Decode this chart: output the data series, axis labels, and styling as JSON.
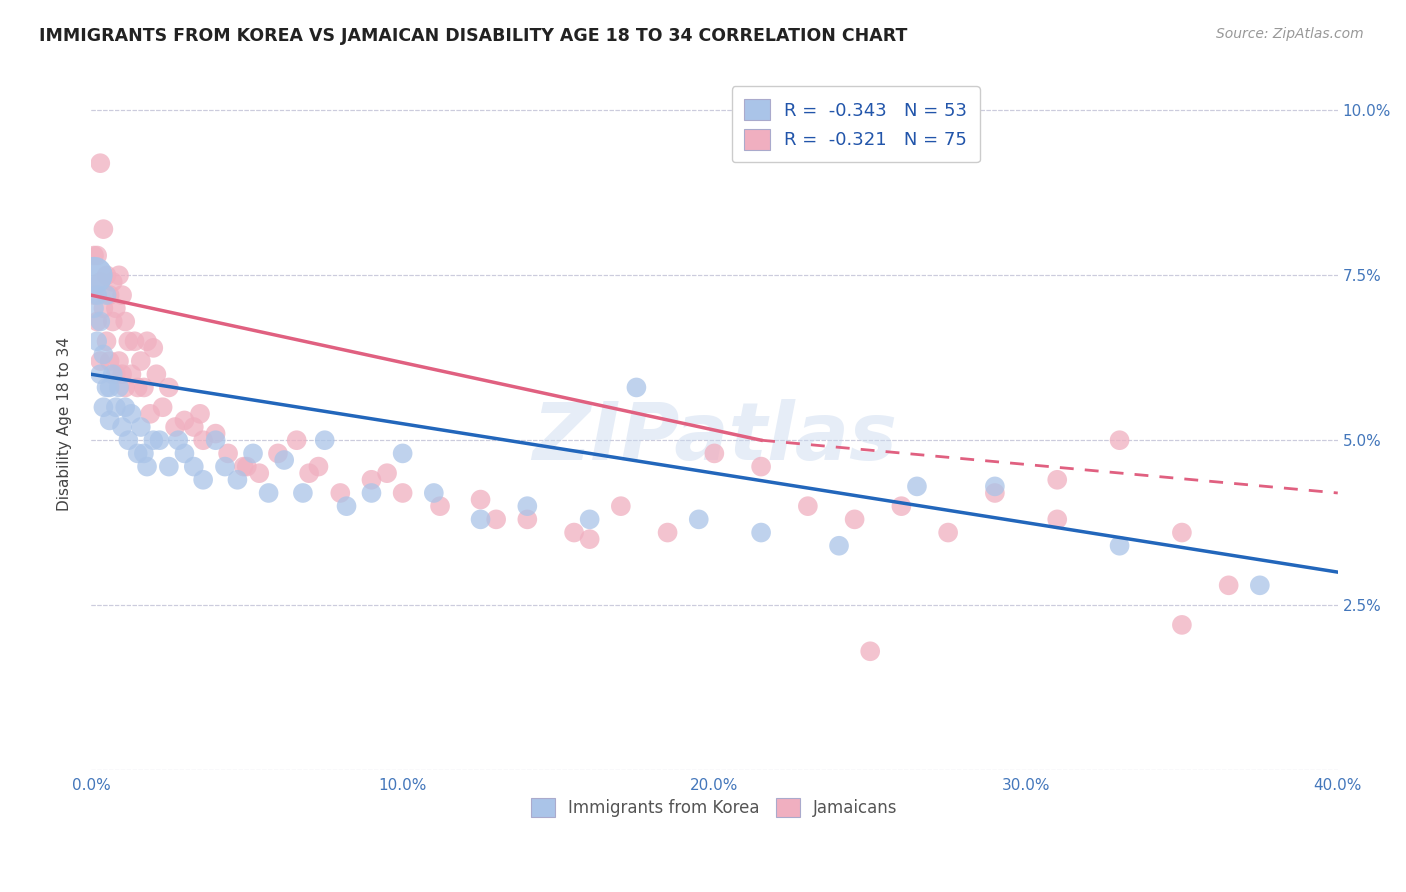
{
  "title": "IMMIGRANTS FROM KOREA VS JAMAICAN DISABILITY AGE 18 TO 34 CORRELATION CHART",
  "source": "Source: ZipAtlas.com",
  "ylabel": "Disability Age 18 to 34",
  "xlim": [
    0.0,
    0.4
  ],
  "ylim": [
    0.0,
    0.105
  ],
  "korea_color": "#aac4e8",
  "korea_edge_color": "#aac4e8",
  "jamaica_color": "#f0afc0",
  "jamaica_edge_color": "#f0afc0",
  "korea_line_color": "#2266bb",
  "jamaica_line_color": "#e06080",
  "korea_R": -0.343,
  "korea_N": 53,
  "jamaica_R": -0.321,
  "jamaica_N": 75,
  "background_color": "#ffffff",
  "grid_color": "#ccccdd",
  "watermark": "ZIPatlas",
  "korea_x": [
    0.001,
    0.001,
    0.002,
    0.002,
    0.003,
    0.003,
    0.004,
    0.004,
    0.005,
    0.005,
    0.006,
    0.006,
    0.007,
    0.008,
    0.009,
    0.01,
    0.011,
    0.012,
    0.013,
    0.015,
    0.016,
    0.017,
    0.018,
    0.02,
    0.022,
    0.025,
    0.028,
    0.03,
    0.033,
    0.036,
    0.04,
    0.043,
    0.047,
    0.052,
    0.057,
    0.062,
    0.068,
    0.075,
    0.082,
    0.09,
    0.1,
    0.11,
    0.125,
    0.14,
    0.16,
    0.175,
    0.195,
    0.215,
    0.24,
    0.265,
    0.29,
    0.33,
    0.375
  ],
  "korea_y": [
    0.075,
    0.07,
    0.072,
    0.065,
    0.068,
    0.06,
    0.063,
    0.055,
    0.058,
    0.072,
    0.058,
    0.053,
    0.06,
    0.055,
    0.058,
    0.052,
    0.055,
    0.05,
    0.054,
    0.048,
    0.052,
    0.048,
    0.046,
    0.05,
    0.05,
    0.046,
    0.05,
    0.048,
    0.046,
    0.044,
    0.05,
    0.046,
    0.044,
    0.048,
    0.042,
    0.047,
    0.042,
    0.05,
    0.04,
    0.042,
    0.048,
    0.042,
    0.038,
    0.04,
    0.038,
    0.058,
    0.038,
    0.036,
    0.034,
    0.043,
    0.043,
    0.034,
    0.028
  ],
  "korea_sizes": [
    700,
    200,
    200,
    200,
    200,
    200,
    200,
    200,
    200,
    200,
    200,
    200,
    200,
    200,
    200,
    200,
    200,
    200,
    200,
    200,
    200,
    200,
    200,
    200,
    200,
    200,
    200,
    200,
    200,
    200,
    200,
    200,
    200,
    200,
    200,
    200,
    200,
    200,
    200,
    200,
    200,
    200,
    200,
    200,
    200,
    200,
    200,
    200,
    200,
    200,
    200,
    200,
    200
  ],
  "jamaica_x": [
    0.001,
    0.001,
    0.002,
    0.002,
    0.003,
    0.003,
    0.003,
    0.004,
    0.004,
    0.005,
    0.005,
    0.006,
    0.006,
    0.007,
    0.007,
    0.008,
    0.008,
    0.009,
    0.009,
    0.01,
    0.01,
    0.011,
    0.011,
    0.012,
    0.013,
    0.014,
    0.015,
    0.016,
    0.017,
    0.018,
    0.019,
    0.021,
    0.023,
    0.025,
    0.027,
    0.03,
    0.033,
    0.036,
    0.04,
    0.044,
    0.049,
    0.054,
    0.06,
    0.066,
    0.073,
    0.08,
    0.09,
    0.1,
    0.112,
    0.125,
    0.14,
    0.155,
    0.17,
    0.185,
    0.2,
    0.215,
    0.23,
    0.245,
    0.26,
    0.275,
    0.29,
    0.31,
    0.33,
    0.35,
    0.365,
    0.02,
    0.035,
    0.05,
    0.07,
    0.095,
    0.13,
    0.16,
    0.25,
    0.31,
    0.35
  ],
  "jamaica_y": [
    0.078,
    0.072,
    0.078,
    0.068,
    0.092,
    0.074,
    0.062,
    0.082,
    0.07,
    0.075,
    0.065,
    0.072,
    0.062,
    0.074,
    0.068,
    0.07,
    0.06,
    0.075,
    0.062,
    0.072,
    0.06,
    0.068,
    0.058,
    0.065,
    0.06,
    0.065,
    0.058,
    0.062,
    0.058,
    0.065,
    0.054,
    0.06,
    0.055,
    0.058,
    0.052,
    0.053,
    0.052,
    0.05,
    0.051,
    0.048,
    0.046,
    0.045,
    0.048,
    0.05,
    0.046,
    0.042,
    0.044,
    0.042,
    0.04,
    0.041,
    0.038,
    0.036,
    0.04,
    0.036,
    0.048,
    0.046,
    0.04,
    0.038,
    0.04,
    0.036,
    0.042,
    0.038,
    0.05,
    0.036,
    0.028,
    0.064,
    0.054,
    0.046,
    0.045,
    0.045,
    0.038,
    0.035,
    0.018,
    0.044,
    0.022
  ],
  "jamaica_sizes": [
    200,
    200,
    200,
    200,
    200,
    200,
    200,
    200,
    200,
    200,
    200,
    200,
    200,
    200,
    200,
    200,
    200,
    200,
    200,
    200,
    200,
    200,
    200,
    200,
    200,
    200,
    200,
    200,
    200,
    200,
    200,
    200,
    200,
    200,
    200,
    200,
    200,
    200,
    200,
    200,
    200,
    200,
    200,
    200,
    200,
    200,
    200,
    200,
    200,
    200,
    200,
    200,
    200,
    200,
    200,
    200,
    200,
    200,
    200,
    200,
    200,
    200,
    200,
    200,
    200,
    200,
    200,
    200,
    200,
    200,
    200,
    200,
    200,
    200,
    200
  ],
  "korea_line_x0": 0.0,
  "korea_line_y0": 0.06,
  "korea_line_x1": 0.4,
  "korea_line_y1": 0.03,
  "jamaica_line_solid_x0": 0.0,
  "jamaica_line_solid_y0": 0.072,
  "jamaica_line_solid_x1": 0.215,
  "jamaica_line_solid_y1": 0.05,
  "jamaica_line_dash_x0": 0.215,
  "jamaica_line_dash_y0": 0.05,
  "jamaica_line_dash_x1": 0.4,
  "jamaica_line_dash_y1": 0.042
}
